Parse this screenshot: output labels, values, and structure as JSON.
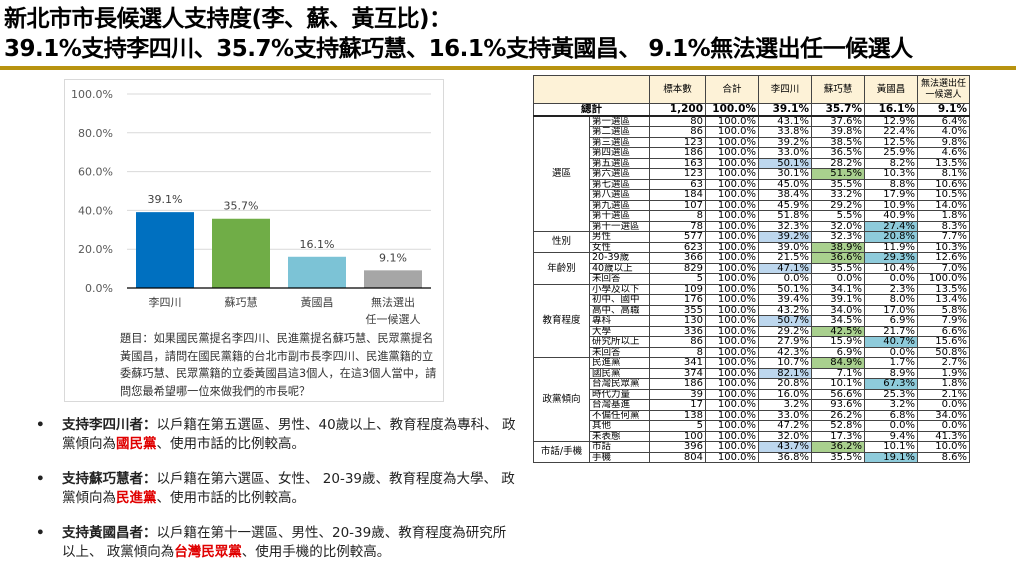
{
  "title": {
    "line1": "新北市市長候選人支持度(李、蘇、黃互比)：",
    "line2": "39.1%支持李四川、35.7%支持蘇巧慧、16.1%支持黃國昌、 9.1%無法選出任一候選人"
  },
  "colors": {
    "accent_rule": "#b8930f",
    "bar_li": "#0070c0",
    "bar_su": "#70ad47",
    "bar_huang": "#7cc3d6",
    "bar_none": "#a6a6a6",
    "highlight_red": "#e00000",
    "table_header_bg": "#fdf2d7"
  },
  "chart_data": {
    "type": "bar",
    "title": "",
    "xlabel": "",
    "ylabel": "",
    "categories": [
      "李四川",
      "蘇巧慧",
      "黃國昌",
      "無法選出任一候選人"
    ],
    "category_lines": [
      [
        "李四川"
      ],
      [
        "蘇巧慧"
      ],
      [
        "黃國昌"
      ],
      [
        "無法選出",
        "任一候選人"
      ]
    ],
    "values": [
      39.1,
      35.7,
      16.1,
      9.1
    ],
    "value_labels": [
      "39.1%",
      "35.7%",
      "16.1%",
      "9.1%"
    ],
    "bar_colors": [
      "#0070c0",
      "#70ad47",
      "#7cc3d6",
      "#a6a6a6"
    ],
    "ylim": [
      0,
      100
    ],
    "yticks": [
      "0.0%",
      "20.0%",
      "40.0%",
      "60.0%",
      "80.0%",
      "100.0%"
    ],
    "grid": true,
    "legend": null
  },
  "question": {
    "text": "題目：如果國民黨提名李四川、民進黨提名蘇巧慧、民眾黨提名黃國昌，請問在國民黨籍的台北市副市長李四川、民進黨籍的立委蘇巧慧、民眾黨籍的立委黃國昌這3個人，在這3個人當中，請問您最希望哪一位來做我們的市長呢？"
  },
  "bullets": [
    {
      "lead": "支持李四川者：",
      "before": "以戶籍在第五選區、男性、40歲以上、教育程度為專科、 政黨傾向為",
      "party": "國民黨",
      "after": "、使用市話的比例較高。"
    },
    {
      "lead": "支持蘇巧慧者：",
      "before": "以戶籍在第六選區、女性、 20-39歲、教育程度為大學、 政黨傾向為",
      "party": "民進黨",
      "after": "、使用市話的比例較高。"
    },
    {
      "lead": "支持黃國昌者：",
      "before": "以戶籍在第十一選區、男性、20-39歲、教育程度為研究所以上、 政黨傾向為",
      "party": "台灣民眾黨",
      "after": "、使用手機的比例較高。"
    }
  ],
  "table": {
    "headers": [
      "標本數",
      "合計",
      "李四川",
      "蘇巧慧",
      "黃國昌",
      "無法選出任一候選人"
    ],
    "total": {
      "label": "總計",
      "values": [
        "1,200",
        "100.0%",
        "39.1%",
        "35.7%",
        "16.1%",
        "9.1%"
      ]
    },
    "groups": [
      {
        "name": "選區",
        "rows": [
          {
            "label": "第一選區",
            "values": [
              "80",
              "100.0%",
              "43.1%",
              "37.6%",
              "12.9%",
              "6.4%"
            ],
            "hl": [
              null,
              null,
              null,
              null,
              null,
              null
            ]
          },
          {
            "label": "第二選區",
            "values": [
              "86",
              "100.0%",
              "33.8%",
              "39.8%",
              "22.4%",
              "4.0%"
            ],
            "hl": [
              null,
              null,
              null,
              null,
              null,
              null
            ]
          },
          {
            "label": "第三選區",
            "values": [
              "123",
              "100.0%",
              "39.2%",
              "38.5%",
              "12.5%",
              "9.8%"
            ],
            "hl": [
              null,
              null,
              null,
              null,
              null,
              null
            ]
          },
          {
            "label": "第四選區",
            "values": [
              "186",
              "100.0%",
              "33.0%",
              "36.5%",
              "25.9%",
              "4.6%"
            ],
            "hl": [
              null,
              null,
              null,
              null,
              null,
              null
            ]
          },
          {
            "label": "第五選區",
            "values": [
              "163",
              "100.0%",
              "50.1%",
              "28.2%",
              "8.2%",
              "13.5%"
            ],
            "hl": [
              null,
              null,
              "blue",
              null,
              null,
              null
            ]
          },
          {
            "label": "第六選區",
            "values": [
              "123",
              "100.0%",
              "30.1%",
              "51.5%",
              "10.3%",
              "8.1%"
            ],
            "hl": [
              null,
              null,
              null,
              "green",
              null,
              null
            ]
          },
          {
            "label": "第七選區",
            "values": [
              "63",
              "100.0%",
              "45.0%",
              "35.5%",
              "8.8%",
              "10.6%"
            ],
            "hl": [
              null,
              null,
              null,
              null,
              null,
              null
            ]
          },
          {
            "label": "第八選區",
            "values": [
              "184",
              "100.0%",
              "38.4%",
              "33.2%",
              "17.9%",
              "10.5%"
            ],
            "hl": [
              null,
              null,
              null,
              null,
              null,
              null
            ]
          },
          {
            "label": "第九選區",
            "values": [
              "107",
              "100.0%",
              "45.9%",
              "29.2%",
              "10.9%",
              "14.0%"
            ],
            "hl": [
              null,
              null,
              null,
              null,
              null,
              null
            ]
          },
          {
            "label": "第十選區",
            "values": [
              "8",
              "100.0%",
              "51.8%",
              "5.5%",
              "40.9%",
              "1.8%"
            ],
            "hl": [
              null,
              null,
              null,
              null,
              null,
              null
            ]
          },
          {
            "label": "第十一選區",
            "values": [
              "78",
              "100.0%",
              "32.3%",
              "32.0%",
              "27.4%",
              "8.3%"
            ],
            "hl": [
              null,
              null,
              null,
              null,
              "teal",
              null
            ]
          }
        ]
      },
      {
        "name": "性別",
        "rows": [
          {
            "label": "男性",
            "values": [
              "577",
              "100.0%",
              "39.2%",
              "32.3%",
              "20.8%",
              "7.7%"
            ],
            "hl": [
              null,
              null,
              "blue",
              null,
              "teal",
              null
            ]
          },
          {
            "label": "女性",
            "values": [
              "623",
              "100.0%",
              "39.0%",
              "38.9%",
              "11.9%",
              "10.3%"
            ],
            "hl": [
              null,
              null,
              null,
              "green",
              null,
              null
            ]
          }
        ]
      },
      {
        "name": "年齡別",
        "rows": [
          {
            "label": "20-39歲",
            "values": [
              "366",
              "100.0%",
              "21.5%",
              "36.6%",
              "29.3%",
              "12.6%"
            ],
            "hl": [
              null,
              null,
              null,
              "green",
              "teal",
              null
            ]
          },
          {
            "label": "40歲以上",
            "values": [
              "829",
              "100.0%",
              "47.1%",
              "35.5%",
              "10.4%",
              "7.0%"
            ],
            "hl": [
              null,
              null,
              "blue",
              null,
              null,
              null
            ]
          },
          {
            "label": "未回答",
            "values": [
              "5",
              "100.0%",
              "0.0%",
              "0.0%",
              "0.0%",
              "100.0%"
            ],
            "hl": [
              null,
              null,
              null,
              null,
              null,
              null
            ]
          }
        ]
      },
      {
        "name": "教育程度",
        "rows": [
          {
            "label": "小學及以下",
            "values": [
              "109",
              "100.0%",
              "50.1%",
              "34.1%",
              "2.3%",
              "13.5%"
            ],
            "hl": [
              null,
              null,
              null,
              null,
              null,
              null
            ]
          },
          {
            "label": "初中、國中",
            "values": [
              "176",
              "100.0%",
              "39.4%",
              "39.1%",
              "8.0%",
              "13.4%"
            ],
            "hl": [
              null,
              null,
              null,
              null,
              null,
              null
            ]
          },
          {
            "label": "高中、高職",
            "values": [
              "355",
              "100.0%",
              "43.2%",
              "34.0%",
              "17.0%",
              "5.8%"
            ],
            "hl": [
              null,
              null,
              null,
              null,
              null,
              null
            ]
          },
          {
            "label": "專科",
            "values": [
              "130",
              "100.0%",
              "50.7%",
              "34.5%",
              "6.9%",
              "7.9%"
            ],
            "hl": [
              null,
              null,
              "blue",
              null,
              null,
              null
            ]
          },
          {
            "label": "大學",
            "values": [
              "336",
              "100.0%",
              "29.2%",
              "42.5%",
              "21.7%",
              "6.6%"
            ],
            "hl": [
              null,
              null,
              null,
              "green",
              null,
              null
            ]
          },
          {
            "label": "研究所以上",
            "values": [
              "86",
              "100.0%",
              "27.9%",
              "15.9%",
              "40.7%",
              "15.6%"
            ],
            "hl": [
              null,
              null,
              null,
              null,
              "teal",
              null
            ]
          },
          {
            "label": "未回答",
            "values": [
              "8",
              "100.0%",
              "42.3%",
              "6.9%",
              "0.0%",
              "50.8%"
            ],
            "hl": [
              null,
              null,
              null,
              null,
              null,
              null
            ]
          }
        ]
      },
      {
        "name": "政黨傾向",
        "rows": [
          {
            "label": "民進黨",
            "values": [
              "341",
              "100.0%",
              "10.7%",
              "84.9%",
              "1.7%",
              "2.7%"
            ],
            "hl": [
              null,
              null,
              null,
              "green",
              null,
              null
            ]
          },
          {
            "label": "國民黨",
            "values": [
              "374",
              "100.0%",
              "82.1%",
              "7.1%",
              "8.9%",
              "1.9%"
            ],
            "hl": [
              null,
              null,
              "blue",
              null,
              null,
              null
            ]
          },
          {
            "label": "台灣民眾黨",
            "values": [
              "186",
              "100.0%",
              "20.8%",
              "10.1%",
              "67.3%",
              "1.8%"
            ],
            "hl": [
              null,
              null,
              null,
              null,
              "teal",
              null
            ]
          },
          {
            "label": "時代力量",
            "values": [
              "39",
              "100.0%",
              "16.0%",
              "56.6%",
              "25.3%",
              "2.1%"
            ],
            "hl": [
              null,
              null,
              null,
              null,
              null,
              null
            ]
          },
          {
            "label": "台灣基進",
            "values": [
              "17",
              "100.0%",
              "3.2%",
              "93.6%",
              "3.2%",
              "0.0%"
            ],
            "hl": [
              null,
              null,
              null,
              null,
              null,
              null
            ]
          },
          {
            "label": "不偏任何黨",
            "values": [
              "138",
              "100.0%",
              "33.0%",
              "26.2%",
              "6.8%",
              "34.0%"
            ],
            "hl": [
              null,
              null,
              null,
              null,
              null,
              null
            ]
          },
          {
            "label": "其他",
            "values": [
              "5",
              "100.0%",
              "47.2%",
              "52.8%",
              "0.0%",
              "0.0%"
            ],
            "hl": [
              null,
              null,
              null,
              null,
              null,
              null
            ]
          },
          {
            "label": "未表態",
            "values": [
              "100",
              "100.0%",
              "32.0%",
              "17.3%",
              "9.4%",
              "41.3%"
            ],
            "hl": [
              null,
              null,
              null,
              null,
              null,
              null
            ]
          }
        ]
      },
      {
        "name": "市話/手機",
        "rows": [
          {
            "label": "市話",
            "values": [
              "396",
              "100.0%",
              "43.7%",
              "36.2%",
              "10.1%",
              "10.0%"
            ],
            "hl": [
              null,
              null,
              "blue",
              "green",
              null,
              null
            ]
          },
          {
            "label": "手機",
            "values": [
              "804",
              "100.0%",
              "36.8%",
              "35.5%",
              "19.1%",
              "8.6%"
            ],
            "hl": [
              null,
              null,
              null,
              null,
              "teal",
              null
            ]
          }
        ]
      }
    ]
  }
}
